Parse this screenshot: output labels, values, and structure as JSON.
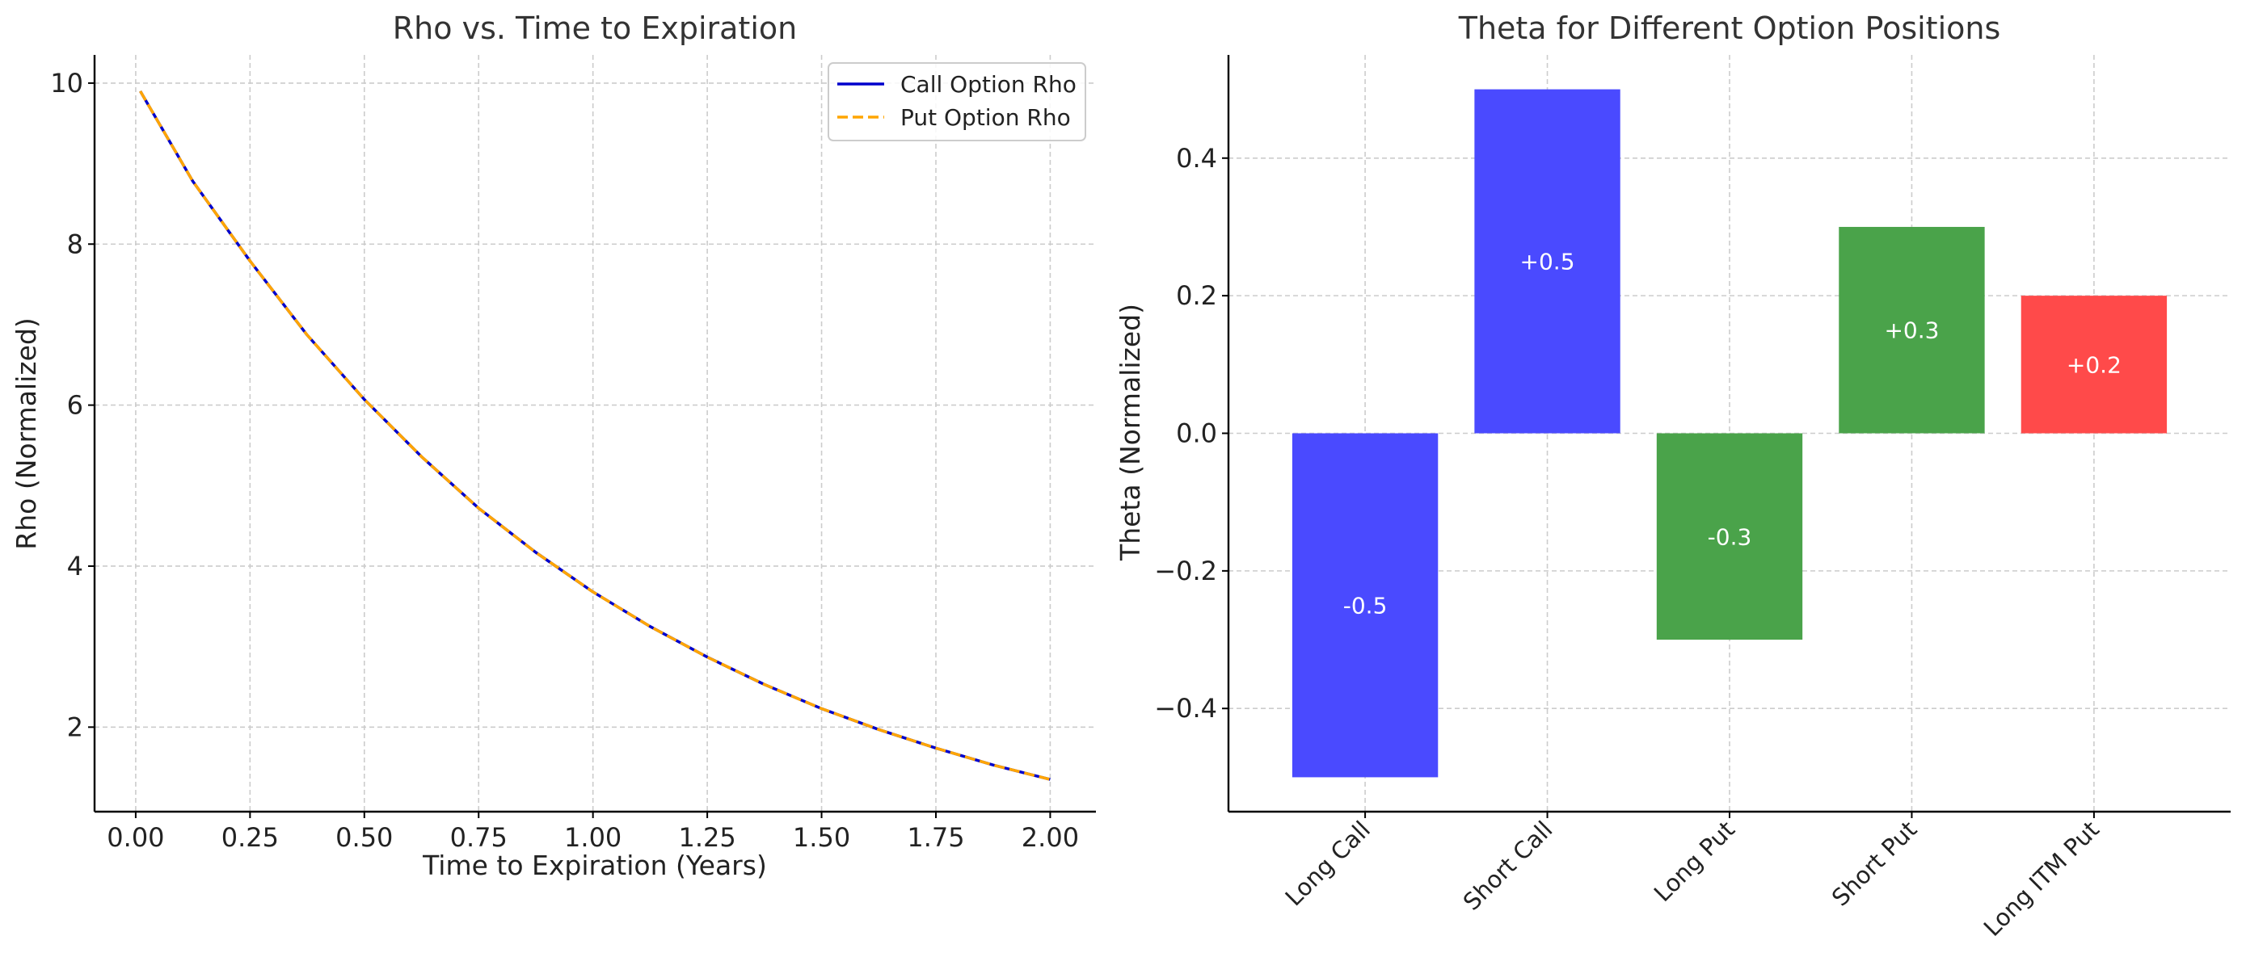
{
  "chart_data": [
    {
      "type": "line",
      "title": "Rho vs. Time to Expiration",
      "xlabel": "Time to Expiration (Years)",
      "ylabel": "Rho (Normalized)",
      "xlim": [
        -0.09,
        2.1
      ],
      "ylim": [
        0.95,
        10.35
      ],
      "xticks": [
        0.0,
        0.25,
        0.5,
        0.75,
        1.0,
        1.25,
        1.5,
        1.75,
        2.0
      ],
      "xtick_labels": [
        "0.00",
        "0.25",
        "0.50",
        "0.75",
        "1.00",
        "1.25",
        "1.50",
        "1.75",
        "2.00"
      ],
      "yticks": [
        2,
        4,
        6,
        8,
        10
      ],
      "ytick_labels": [
        "2",
        "4",
        "6",
        "8",
        "10"
      ],
      "grid": true,
      "legend_position": "top-right",
      "x": [
        0.01,
        0.125,
        0.25,
        0.375,
        0.5,
        0.625,
        0.75,
        0.875,
        1.0,
        1.125,
        1.25,
        1.375,
        1.5,
        1.625,
        1.75,
        1.875,
        2.0
      ],
      "series": [
        {
          "name": "Call Option Rho",
          "color": "#0000cc",
          "style": "solid",
          "values": [
            9.9,
            8.78,
            7.79,
            6.87,
            6.07,
            5.36,
            4.72,
            4.17,
            3.68,
            3.25,
            2.87,
            2.53,
            2.23,
            1.97,
            1.74,
            1.53,
            1.35
          ]
        },
        {
          "name": "Put Option Rho",
          "color": "#ffa500",
          "style": "dashed",
          "values": [
            9.9,
            8.78,
            7.79,
            6.87,
            6.07,
            5.36,
            4.72,
            4.17,
            3.68,
            3.25,
            2.87,
            2.53,
            2.23,
            1.97,
            1.74,
            1.53,
            1.35
          ]
        }
      ]
    },
    {
      "type": "bar",
      "title": "Theta for Different Option Positions",
      "xlabel": "",
      "ylabel": "Theta (Normalized)",
      "ylim": [
        -0.55,
        0.55
      ],
      "yticks": [
        -0.4,
        -0.2,
        0.0,
        0.2,
        0.4
      ],
      "ytick_labels": [
        "−0.4",
        "−0.2",
        "0.0",
        "0.2",
        "0.4"
      ],
      "grid": true,
      "categories": [
        "Long Call",
        "Short Call",
        "Long Put",
        "Short Put",
        "Long ITM Put"
      ],
      "values": [
        -0.5,
        0.5,
        -0.3,
        0.3,
        0.2
      ],
      "value_labels": [
        "-0.5",
        "+0.5",
        "-0.3",
        "+0.3",
        "+0.2"
      ],
      "colors": [
        "#4a4aff",
        "#4a4aff",
        "#4aa34a",
        "#4aa34a",
        "#ff4a4a"
      ]
    }
  ]
}
